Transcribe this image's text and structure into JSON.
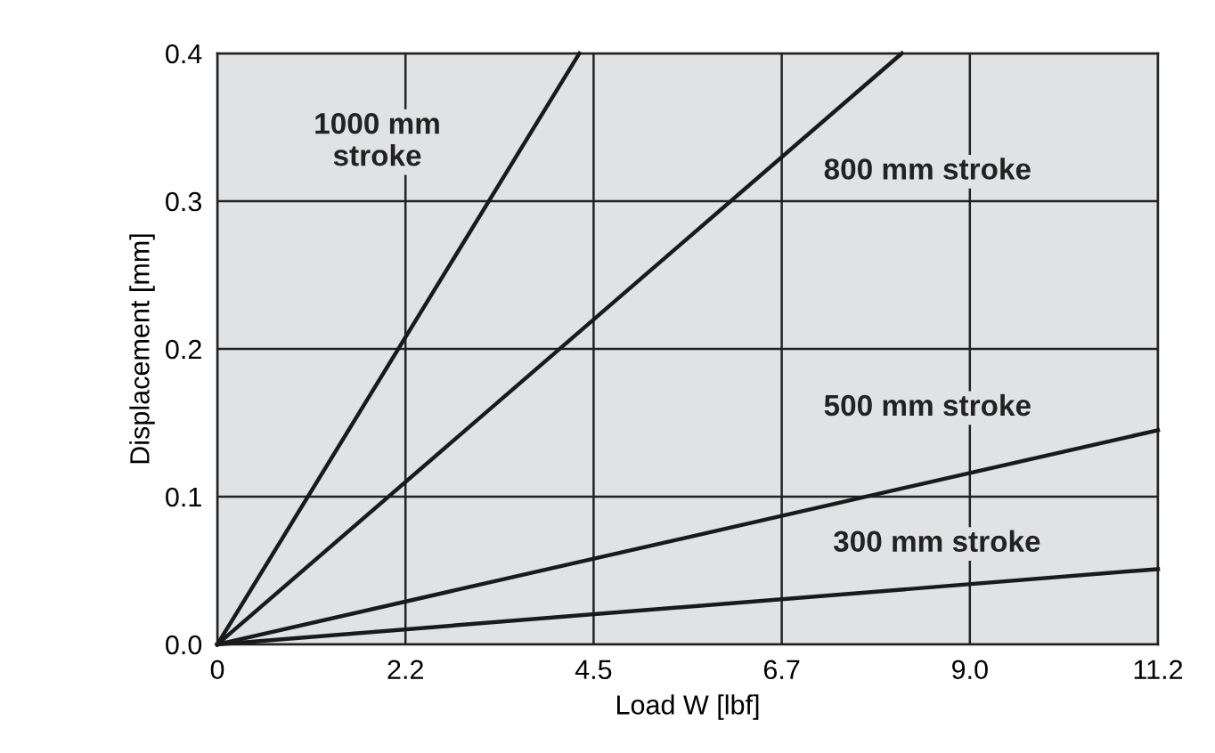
{
  "chart_data": {
    "type": "line",
    "xlabel": "Load W [lbf]",
    "ylabel": "Displacement [mm]",
    "series": [
      {
        "name": "1000 mm\nstroke",
        "color": "#1a1a1a",
        "x": [
          0,
          4.31
        ],
        "values": [
          0,
          0.4
        ]
      },
      {
        "name": "800 mm stroke",
        "color": "#1a1a1a",
        "x": [
          0,
          8.15
        ],
        "values": [
          0,
          0.4
        ]
      },
      {
        "name": "500 mm stroke",
        "color": "#1a1a1a",
        "x": [
          0,
          11.2
        ],
        "values": [
          0,
          0.145
        ]
      },
      {
        "name": "300 mm stroke",
        "color": "#1a1a1a",
        "x": [
          0,
          11.2
        ],
        "values": [
          0,
          0.051
        ]
      }
    ],
    "xlim": [
      0,
      11.2
    ],
    "xticks": [
      0,
      {
        "value": 2.24,
        "label": "2.2"
      },
      {
        "value": 4.48,
        "label": "4.5"
      },
      {
        "value": 6.72,
        "label": "6.7"
      },
      {
        "value": 8.96,
        "label": "9.0"
      },
      11.2
    ],
    "ylim": [
      0,
      0.4
    ],
    "yticks": [
      {
        "value": 0,
        "label": "0.0"
      },
      0.1,
      0.2,
      0.3,
      0.4
    ],
    "grid": true,
    "marker": "none",
    "line_style": "solid"
  }
}
